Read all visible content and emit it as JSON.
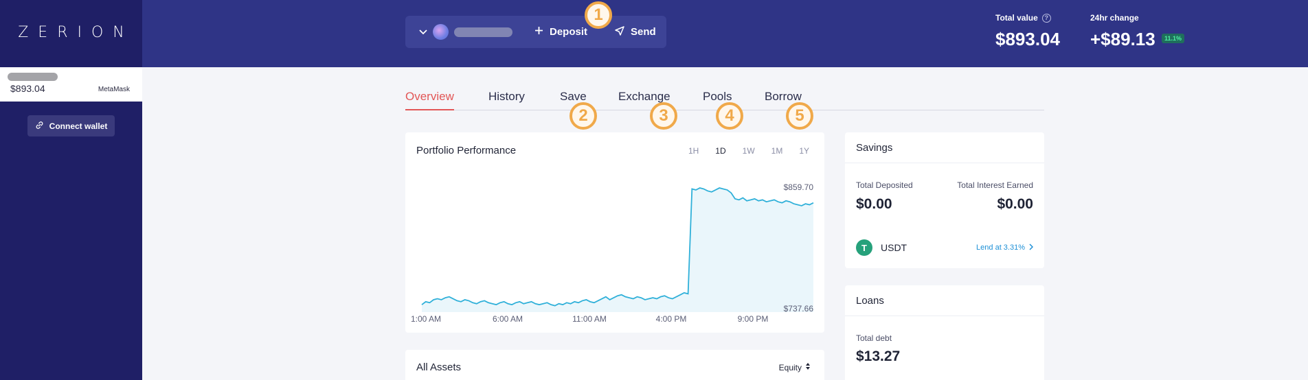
{
  "brand": {
    "logo_text": "ZERION"
  },
  "sidebar": {
    "wallet": {
      "balance": "$893.04",
      "provider": "MetaMask"
    },
    "connect_wallet_label": "Connect wallet"
  },
  "header": {
    "actions": {
      "deposit_label": "Deposit",
      "send_label": "Send"
    },
    "total_value_label": "Total value",
    "total_value": "$893.04",
    "change_label": "24hr change",
    "change_value": "+$89.13",
    "change_percent": "11.1%"
  },
  "tabs": [
    {
      "label": "Overview",
      "active": true
    },
    {
      "label": "History"
    },
    {
      "label": "Save"
    },
    {
      "label": "Exchange"
    },
    {
      "label": "Pools"
    },
    {
      "label": "Borrow"
    }
  ],
  "annotations": [
    "1",
    "2",
    "3",
    "4",
    "5"
  ],
  "performance": {
    "title": "Portfolio Performance",
    "ranges": [
      "1H",
      "1D",
      "1W",
      "1M",
      "1Y"
    ],
    "active_range": "1D"
  },
  "chart_data": {
    "type": "area",
    "x_ticks": [
      "1:00 AM",
      "6:00 AM",
      "11:00 AM",
      "4:00 PM",
      "9:00 PM"
    ],
    "max_label": "$859.70",
    "min_label": "$737.66",
    "color": "#2fb0d9",
    "y_range": [
      737.66,
      859.7
    ],
    "values": [
      741,
      744,
      743,
      746,
      747,
      746,
      748,
      749,
      747,
      745,
      744,
      746,
      745,
      743,
      742,
      744,
      745,
      743,
      742,
      741,
      743,
      744,
      742,
      741,
      743,
      744,
      742,
      743,
      744,
      742,
      741,
      742,
      743,
      741,
      740,
      742,
      741,
      743,
      742,
      744,
      743,
      745,
      746,
      744,
      743,
      745,
      747,
      749,
      746,
      748,
      750,
      751,
      749,
      748,
      747,
      749,
      748,
      746,
      747,
      748,
      747,
      749,
      750,
      748,
      747,
      749,
      751,
      753,
      752,
      858,
      857,
      859,
      858,
      856,
      855,
      857,
      859,
      858,
      857,
      854,
      848,
      847,
      849,
      846,
      847,
      848,
      846,
      847,
      845,
      846,
      847,
      845,
      844,
      846,
      845,
      843,
      842,
      841,
      843,
      842,
      844
    ]
  },
  "all_assets": {
    "title": "All Assets",
    "sort_label": "Equity"
  },
  "savings": {
    "title": "Savings",
    "deposited_label": "Total Deposited",
    "deposited_value": "$0.00",
    "interest_label": "Total Interest Earned",
    "interest_value": "$0.00",
    "asset": {
      "symbol": "USDT",
      "action": "Lend at 3.31%"
    }
  },
  "loans": {
    "title": "Loans",
    "debt_label": "Total debt",
    "debt_value": "$13.27"
  }
}
